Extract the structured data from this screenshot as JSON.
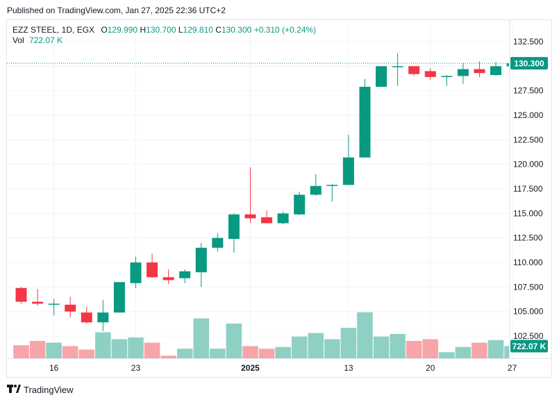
{
  "header": {
    "published": "Published on TradingView.com, Jan 27, 2025 22:36 UTC+2"
  },
  "legend": {
    "symbol": "EZZ STEEL, 1D, EGX",
    "o_label": "O",
    "o_value": "129.990",
    "h_label": "H",
    "h_value": "130.700",
    "l_label": "L",
    "l_value": "129.810",
    "c_label": "C",
    "c_value": "130.300",
    "change": "+0.310 (+0.24%)",
    "vol_label": "Vol",
    "vol_value": "722.07 K"
  },
  "colors": {
    "up": "#089981",
    "down": "#f23645",
    "vol_up": "#8fd0c4",
    "vol_down": "#f7a5a8",
    "grid": "#f0f3fa"
  },
  "footer": {
    "brand": "TradingView",
    "logo_icon": "tradingview-logo-icon"
  },
  "chart_data": {
    "type": "candlestick",
    "ylim": [
      101.2,
      134.0
    ],
    "y_ticks": [
      102.5,
      105.0,
      107.5,
      110.0,
      112.5,
      115.0,
      117.5,
      120.0,
      122.5,
      125.0,
      127.5,
      130.0,
      132.5
    ],
    "y_tick_labels": [
      "102.500",
      "105.000",
      "107.500",
      "110.000",
      "112.500",
      "115.000",
      "117.500",
      "120.000",
      "122.500",
      "125.000",
      "127.500",
      "130.000",
      "132.500"
    ],
    "x_tick_labels": [
      {
        "index": 2,
        "label": "16"
      },
      {
        "index": 7,
        "label": "23"
      },
      {
        "index": 14,
        "label": "2025"
      },
      {
        "index": 20,
        "label": "13"
      },
      {
        "index": 25,
        "label": "20"
      },
      {
        "index": 30,
        "label": "27"
      }
    ],
    "last_price_label": "130.300",
    "last_volume_label": "722.07 K",
    "candles": [
      {
        "o": 107.4,
        "h": 107.5,
        "l": 105.8,
        "c": 106.0
      },
      {
        "o": 106.0,
        "h": 107.3,
        "l": 105.6,
        "c": 105.8
      },
      {
        "o": 105.8,
        "h": 106.3,
        "l": 104.6,
        "c": 105.8
      },
      {
        "o": 105.7,
        "h": 106.5,
        "l": 104.4,
        "c": 105.0
      },
      {
        "o": 104.9,
        "h": 105.5,
        "l": 103.8,
        "c": 103.9
      },
      {
        "o": 103.9,
        "h": 106.2,
        "l": 103.0,
        "c": 104.9
      },
      {
        "o": 104.9,
        "h": 108.0,
        "l": 104.9,
        "c": 108.0
      },
      {
        "o": 107.9,
        "h": 110.6,
        "l": 107.4,
        "c": 110.0
      },
      {
        "o": 110.0,
        "h": 110.9,
        "l": 108.4,
        "c": 108.5
      },
      {
        "o": 108.5,
        "h": 109.3,
        "l": 107.8,
        "c": 108.2
      },
      {
        "o": 108.4,
        "h": 109.3,
        "l": 107.9,
        "c": 109.1
      },
      {
        "o": 109.0,
        "h": 112.0,
        "l": 107.5,
        "c": 111.5
      },
      {
        "o": 111.5,
        "h": 113.0,
        "l": 111.1,
        "c": 112.5
      },
      {
        "o": 112.4,
        "h": 115.0,
        "l": 111.0,
        "c": 114.9
      },
      {
        "o": 114.9,
        "h": 119.7,
        "l": 114.0,
        "c": 114.5
      },
      {
        "o": 114.6,
        "h": 115.3,
        "l": 114.0,
        "c": 114.0
      },
      {
        "o": 114.0,
        "h": 115.2,
        "l": 113.9,
        "c": 115.0
      },
      {
        "o": 114.9,
        "h": 117.2,
        "l": 114.8,
        "c": 116.9
      },
      {
        "o": 116.9,
        "h": 119.0,
        "l": 116.8,
        "c": 117.8
      },
      {
        "o": 117.8,
        "h": 118.0,
        "l": 116.2,
        "c": 117.9
      },
      {
        "o": 117.9,
        "h": 123.0,
        "l": 117.9,
        "c": 120.7
      },
      {
        "o": 120.7,
        "h": 128.7,
        "l": 120.7,
        "c": 127.9
      },
      {
        "o": 127.9,
        "h": 130.0,
        "l": 127.9,
        "c": 130.0
      },
      {
        "o": 130.0,
        "h": 131.3,
        "l": 128.0,
        "c": 130.0
      },
      {
        "o": 130.0,
        "h": 130.0,
        "l": 129.0,
        "c": 129.2
      },
      {
        "o": 129.5,
        "h": 129.8,
        "l": 128.6,
        "c": 128.9
      },
      {
        "o": 128.9,
        "h": 129.1,
        "l": 128.0,
        "c": 129.0
      },
      {
        "o": 129.0,
        "h": 130.3,
        "l": 128.2,
        "c": 129.7
      },
      {
        "o": 129.7,
        "h": 130.5,
        "l": 128.9,
        "c": 129.3
      },
      {
        "o": 129.1,
        "h": 130.4,
        "l": 129.0,
        "c": 130.0
      },
      {
        "o": 129.99,
        "h": 130.7,
        "l": 129.81,
        "c": 130.3
      }
    ],
    "volume_max": 100,
    "volumes": [
      15,
      20,
      18,
      14,
      10,
      30,
      22,
      24,
      18,
      3,
      11,
      46,
      11,
      40,
      14,
      11,
      13,
      25,
      29,
      22,
      35,
      53,
      25,
      28,
      20,
      22,
      7,
      13,
      18,
      21,
      14
    ]
  }
}
